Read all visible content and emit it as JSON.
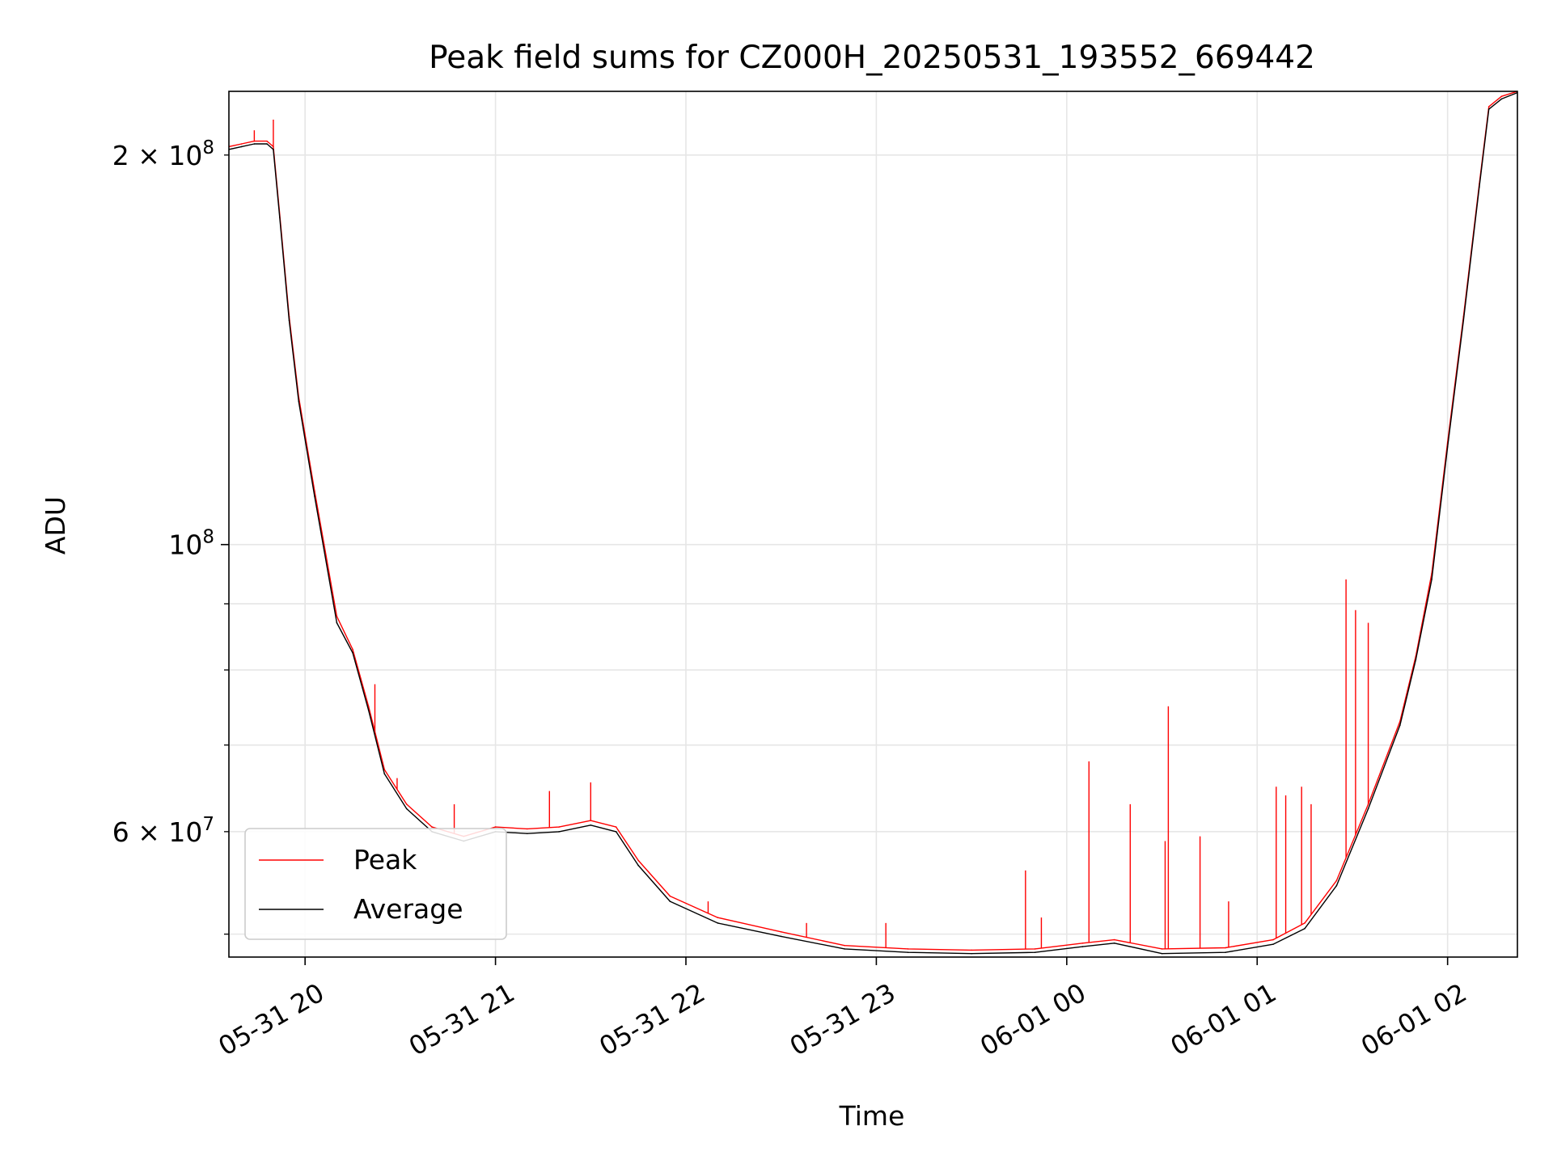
{
  "chart_data": {
    "type": "line",
    "title": "Peak field sums for CZ000H_20250531_193552_669442",
    "xlabel": "Time",
    "ylabel": "ADU",
    "x_axis": {
      "kind": "datetime",
      "range": [
        "2025-05-31 19:36",
        "2025-06-01 02:22"
      ],
      "ticks": [
        {
          "time": "2025-05-31 20:00",
          "label": "05-31 20"
        },
        {
          "time": "2025-05-31 21:00",
          "label": "05-31 21"
        },
        {
          "time": "2025-05-31 22:00",
          "label": "05-31 22"
        },
        {
          "time": "2025-05-31 23:00",
          "label": "05-31 23"
        },
        {
          "time": "2025-06-01 00:00",
          "label": "06-01 00"
        },
        {
          "time": "2025-06-01 01:00",
          "label": "06-01 01"
        },
        {
          "time": "2025-06-01 02:00",
          "label": "06-01 02"
        }
      ]
    },
    "y_axis": {
      "scale": "log",
      "range": [
        48000000,
        224000000
      ],
      "major_ticks": [
        {
          "value": 100000000,
          "label_base": "10",
          "label_exp": "8"
        }
      ],
      "labeled_minor_ticks": [
        {
          "value": 60000000,
          "label_base": "6 × 10",
          "label_exp": "7"
        },
        {
          "value": 200000000,
          "label_base": "2 × 10",
          "label_exp": "8"
        }
      ],
      "minor_gridlines": [
        50000000,
        60000000,
        70000000,
        80000000,
        90000000,
        200000000
      ]
    },
    "grid": true,
    "legend": {
      "position": "lower-left",
      "entries": [
        "Peak",
        "Average"
      ]
    },
    "series": [
      {
        "name": "Peak",
        "color": "#ff0000",
        "points": [
          [
            "2025-05-31 19:36",
            203000000
          ],
          [
            "2025-05-31 19:40",
            204000000
          ],
          [
            "2025-05-31 19:44",
            205000000
          ],
          [
            "2025-05-31 19:48",
            205000000
          ],
          [
            "2025-05-31 19:50",
            203000000
          ],
          [
            "2025-05-31 19:52",
            180000000
          ],
          [
            "2025-05-31 19:55",
            150000000
          ],
          [
            "2025-05-31 19:58",
            130000000
          ],
          [
            "2025-05-31 20:03",
            110000000
          ],
          [
            "2025-05-31 20:06",
            100000000
          ],
          [
            "2025-05-31 20:10",
            88000000
          ],
          [
            "2025-05-31 20:15",
            83000000
          ],
          [
            "2025-05-31 20:20",
            75000000
          ],
          [
            "2025-05-31 20:25",
            67000000
          ],
          [
            "2025-05-31 20:32",
            63000000
          ],
          [
            "2025-05-31 20:40",
            60500000
          ],
          [
            "2025-05-31 20:50",
            59500000
          ],
          [
            "2025-05-31 21:00",
            60500000
          ],
          [
            "2025-05-31 21:10",
            60300000
          ],
          [
            "2025-05-31 21:20",
            60500000
          ],
          [
            "2025-05-31 21:30",
            61200000
          ],
          [
            "2025-05-31 21:38",
            60500000
          ],
          [
            "2025-05-31 21:45",
            57000000
          ],
          [
            "2025-05-31 21:55",
            53500000
          ],
          [
            "2025-05-31 22:10",
            51500000
          ],
          [
            "2025-05-31 22:30",
            50200000
          ],
          [
            "2025-05-31 22:50",
            49000000
          ],
          [
            "2025-05-31 23:10",
            48700000
          ],
          [
            "2025-05-31 23:30",
            48600000
          ],
          [
            "2025-05-31 23:50",
            48700000
          ],
          [
            "2025-06-01 00:05",
            49200000
          ],
          [
            "2025-06-01 00:15",
            49500000
          ],
          [
            "2025-06-01 00:30",
            48700000
          ],
          [
            "2025-06-01 00:50",
            48800000
          ],
          [
            "2025-06-01 01:05",
            49500000
          ],
          [
            "2025-06-01 01:15",
            51000000
          ],
          [
            "2025-06-01 01:25",
            55000000
          ],
          [
            "2025-06-01 01:35",
            63000000
          ],
          [
            "2025-06-01 01:45",
            73000000
          ],
          [
            "2025-06-01 01:50",
            82000000
          ],
          [
            "2025-06-01 01:55",
            95000000
          ],
          [
            "2025-06-01 02:00",
            120000000
          ],
          [
            "2025-06-01 02:05",
            150000000
          ],
          [
            "2025-06-01 02:10",
            190000000
          ],
          [
            "2025-06-01 02:13",
            218000000
          ],
          [
            "2025-06-01 02:17",
            222000000
          ],
          [
            "2025-06-01 02:22",
            224000000
          ]
        ],
        "spikes": [
          [
            "2025-05-31 19:44",
            209000000
          ],
          [
            "2025-05-31 19:50",
            213000000
          ],
          [
            "2025-05-31 20:22",
            78000000
          ],
          [
            "2025-05-31 20:29",
            66000000
          ],
          [
            "2025-05-31 20:47",
            63000000
          ],
          [
            "2025-05-31 21:17",
            64500000
          ],
          [
            "2025-05-31 21:30",
            65500000
          ],
          [
            "2025-05-31 22:07",
            53000000
          ],
          [
            "2025-05-31 22:38",
            51000000
          ],
          [
            "2025-05-31 23:03",
            51000000
          ],
          [
            "2025-05-31 23:52",
            51500000
          ],
          [
            "2025-05-31 23:47",
            56000000
          ],
          [
            "2025-06-01 00:07",
            68000000
          ],
          [
            "2025-06-01 00:20",
            63000000
          ],
          [
            "2025-06-01 00:31",
            59000000
          ],
          [
            "2025-06-01 00:32",
            75000000
          ],
          [
            "2025-06-01 00:42",
            59500000
          ],
          [
            "2025-06-01 00:51",
            53000000
          ],
          [
            "2025-06-01 01:06",
            65000000
          ],
          [
            "2025-06-01 01:09",
            64000000
          ],
          [
            "2025-06-01 01:14",
            65000000
          ],
          [
            "2025-06-01 01:17",
            63000000
          ],
          [
            "2025-06-01 01:28",
            94000000
          ],
          [
            "2025-06-01 01:31",
            89000000
          ],
          [
            "2025-06-01 01:35",
            87000000
          ]
        ]
      },
      {
        "name": "Average",
        "color": "#000000",
        "points": [
          [
            "2025-05-31 19:36",
            202000000
          ],
          [
            "2025-05-31 19:40",
            203000000
          ],
          [
            "2025-05-31 19:44",
            204000000
          ],
          [
            "2025-05-31 19:48",
            204000000
          ],
          [
            "2025-05-31 19:50",
            202000000
          ],
          [
            "2025-05-31 19:52",
            179000000
          ],
          [
            "2025-05-31 19:55",
            149000000
          ],
          [
            "2025-05-31 19:58",
            129000000
          ],
          [
            "2025-05-31 20:03",
            109000000
          ],
          [
            "2025-05-31 20:06",
            99000000
          ],
          [
            "2025-05-31 20:10",
            87000000
          ],
          [
            "2025-05-31 20:15",
            82500000
          ],
          [
            "2025-05-31 20:20",
            74500000
          ],
          [
            "2025-05-31 20:25",
            66500000
          ],
          [
            "2025-05-31 20:32",
            62500000
          ],
          [
            "2025-05-31 20:40",
            60000000
          ],
          [
            "2025-05-31 20:50",
            59000000
          ],
          [
            "2025-05-31 21:00",
            60000000
          ],
          [
            "2025-05-31 21:10",
            59800000
          ],
          [
            "2025-05-31 21:20",
            60000000
          ],
          [
            "2025-05-31 21:30",
            60700000
          ],
          [
            "2025-05-31 21:38",
            60000000
          ],
          [
            "2025-05-31 21:45",
            56500000
          ],
          [
            "2025-05-31 21:55",
            53000000
          ],
          [
            "2025-05-31 22:10",
            51000000
          ],
          [
            "2025-05-31 22:30",
            49800000
          ],
          [
            "2025-05-31 22:50",
            48700000
          ],
          [
            "2025-05-31 23:10",
            48400000
          ],
          [
            "2025-05-31 23:30",
            48300000
          ],
          [
            "2025-05-31 23:50",
            48400000
          ],
          [
            "2025-06-01 00:05",
            48900000
          ],
          [
            "2025-06-01 00:15",
            49200000
          ],
          [
            "2025-06-01 00:30",
            48300000
          ],
          [
            "2025-06-01 00:50",
            48400000
          ],
          [
            "2025-06-01 01:05",
            49100000
          ],
          [
            "2025-06-01 01:15",
            50500000
          ],
          [
            "2025-06-01 01:25",
            54500000
          ],
          [
            "2025-06-01 01:35",
            62500000
          ],
          [
            "2025-06-01 01:45",
            72500000
          ],
          [
            "2025-06-01 01:50",
            81500000
          ],
          [
            "2025-06-01 01:55",
            94000000
          ],
          [
            "2025-06-01 02:00",
            119000000
          ],
          [
            "2025-06-01 02:05",
            149000000
          ],
          [
            "2025-06-01 02:10",
            189000000
          ],
          [
            "2025-06-01 02:13",
            217000000
          ],
          [
            "2025-06-01 02:17",
            221000000
          ],
          [
            "2025-06-01 02:22",
            223500000
          ]
        ]
      }
    ]
  }
}
